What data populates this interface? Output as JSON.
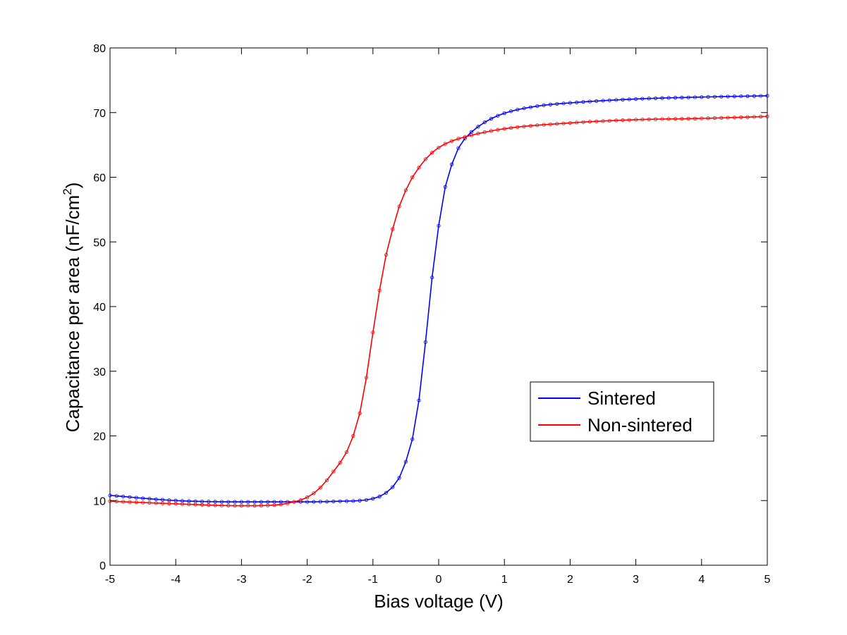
{
  "chart_data": {
    "type": "line",
    "title": "",
    "xlabel": "Bias voltage (V)",
    "ylabel_main": "Capacitance per area (nF/cm",
    "ylabel_sup": "2",
    "ylabel_close": ")",
    "xlim": [
      -5,
      5
    ],
    "ylim": [
      0,
      80
    ],
    "xticks": [
      -5,
      -4,
      -3,
      -2,
      -1,
      0,
      1,
      2,
      3,
      4,
      5
    ],
    "yticks": [
      0,
      10,
      20,
      30,
      40,
      50,
      60,
      70,
      80
    ],
    "grid": false,
    "legend_position": "center-right",
    "series": [
      {
        "name": "Sintered",
        "color": "#0000ff",
        "marker": "open-circle",
        "x": [
          -5,
          -4,
          -3,
          -2.5,
          -2,
          -1.5,
          -1.2,
          -1.0,
          -0.8,
          -0.6,
          -0.5,
          -0.4,
          -0.3,
          -0.2,
          -0.1,
          0,
          0.1,
          0.2,
          0.3,
          0.4,
          0.5,
          0.7,
          1.0,
          1.5,
          2,
          3,
          4,
          5
        ],
        "y": [
          10.8,
          10.0,
          9.8,
          9.8,
          9.8,
          9.9,
          10.0,
          10.3,
          11.2,
          13.5,
          16.0,
          19.5,
          25.5,
          34.5,
          44.5,
          52.5,
          58.5,
          62.0,
          64.5,
          66.0,
          67.0,
          68.5,
          69.9,
          71.0,
          71.5,
          72.1,
          72.4,
          72.6
        ]
      },
      {
        "name": "Non-sintered",
        "color": "#ff0000",
        "marker": "open-circle",
        "x": [
          -5,
          -4,
          -3,
          -2.5,
          -2.2,
          -2,
          -1.8,
          -1.6,
          -1.4,
          -1.3,
          -1.2,
          -1.1,
          -1.0,
          -0.9,
          -0.8,
          -0.7,
          -0.6,
          -0.5,
          -0.4,
          -0.3,
          -0.2,
          -0.1,
          0,
          0.2,
          0.5,
          1.0,
          2,
          3,
          4,
          5
        ],
        "y": [
          9.9,
          9.5,
          9.2,
          9.3,
          9.8,
          10.5,
          12.0,
          14.5,
          17.5,
          20.0,
          23.5,
          29.0,
          36.0,
          42.5,
          48.0,
          52.0,
          55.5,
          58.0,
          60.0,
          61.5,
          62.8,
          63.8,
          64.6,
          65.6,
          66.5,
          67.5,
          68.4,
          68.9,
          69.1,
          69.4
        ]
      }
    ]
  },
  "colors": {
    "background": "#ffffff",
    "axes": "#000000"
  }
}
